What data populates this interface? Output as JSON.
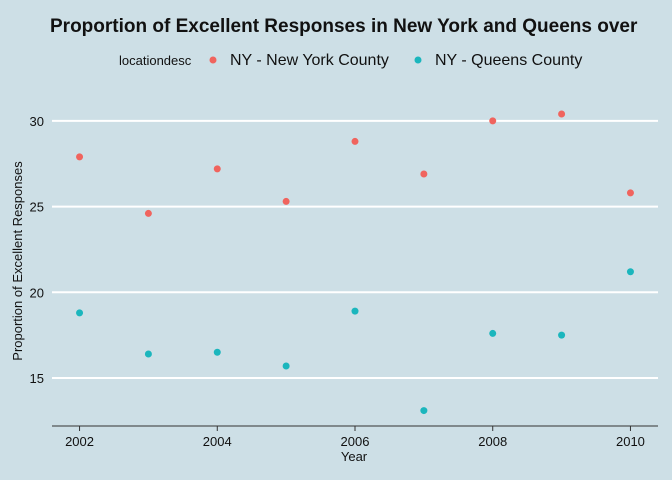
{
  "colors": {
    "background": "#cddfe6",
    "grid": "#ffffff",
    "axis": "#333333",
    "text": "#111111"
  },
  "chart_data": {
    "type": "scatter",
    "title": "Proportion of Excellent Responses in New York and Queens over",
    "xlabel": "Year",
    "ylabel": "Proportion of Excellent Responses",
    "legend": {
      "title": "locationdesc",
      "position": "top"
    },
    "xlim": [
      2001.6,
      2010.4
    ],
    "ylim": [
      12.2,
      31.8
    ],
    "xticks": [
      2002,
      2004,
      2006,
      2008,
      2010
    ],
    "yticks": [
      15,
      20,
      25,
      30
    ],
    "grid": true,
    "series": [
      {
        "name": "NY - New York County",
        "color": "#f0645e",
        "points": [
          {
            "x": 2002,
            "y": 27.9
          },
          {
            "x": 2003,
            "y": 24.6
          },
          {
            "x": 2004,
            "y": 27.2
          },
          {
            "x": 2005,
            "y": 25.3
          },
          {
            "x": 2006,
            "y": 28.8
          },
          {
            "x": 2007,
            "y": 26.9
          },
          {
            "x": 2008,
            "y": 30.0
          },
          {
            "x": 2009,
            "y": 30.4
          },
          {
            "x": 2010,
            "y": 25.8
          }
        ]
      },
      {
        "name": "NY - Queens County",
        "color": "#1bb6bd",
        "points": [
          {
            "x": 2002,
            "y": 18.8
          },
          {
            "x": 2003,
            "y": 16.4
          },
          {
            "x": 2004,
            "y": 16.5
          },
          {
            "x": 2005,
            "y": 15.7
          },
          {
            "x": 2006,
            "y": 18.9
          },
          {
            "x": 2007,
            "y": 13.1
          },
          {
            "x": 2008,
            "y": 17.6
          },
          {
            "x": 2009,
            "y": 17.5
          },
          {
            "x": 2010,
            "y": 21.2
          }
        ]
      }
    ]
  }
}
